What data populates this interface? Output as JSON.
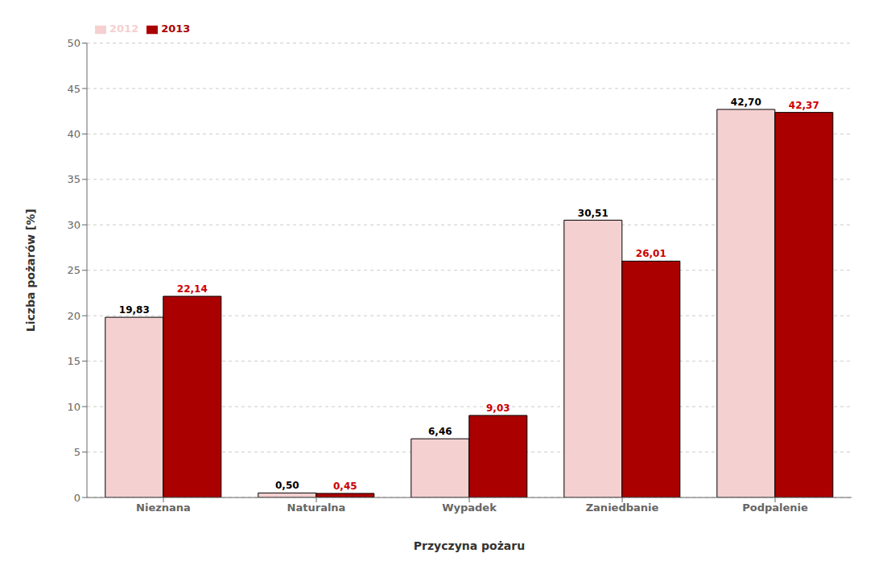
{
  "chart_data": {
    "type": "bar",
    "xlabel": "Przyczyna pożaru",
    "ylabel": "Liczba pożarów [%]",
    "categories": [
      "Nieznana",
      "Naturalna",
      "Wypadek",
      "Zaniedbanie",
      "Podpalenie"
    ],
    "series": [
      {
        "name": "2012",
        "color": "#f5d0d0",
        "values": [
          19.83,
          0.5,
          6.46,
          30.51,
          42.7
        ],
        "value_labels": [
          "19,83",
          "0,50",
          "6,46",
          "30,51",
          "42,70"
        ]
      },
      {
        "name": "2013",
        "color": "#aa0000",
        "values": [
          22.14,
          0.45,
          9.03,
          26.01,
          42.37
        ],
        "value_labels": [
          "22,14",
          "0,45",
          "9,03",
          "26,01",
          "42,37"
        ]
      }
    ],
    "ylim": [
      0,
      50
    ],
    "yticks": [
      0,
      5,
      10,
      15,
      20,
      25,
      30,
      35,
      40,
      45,
      50
    ],
    "grid": true,
    "legend": "upper left",
    "data_labels": true
  }
}
